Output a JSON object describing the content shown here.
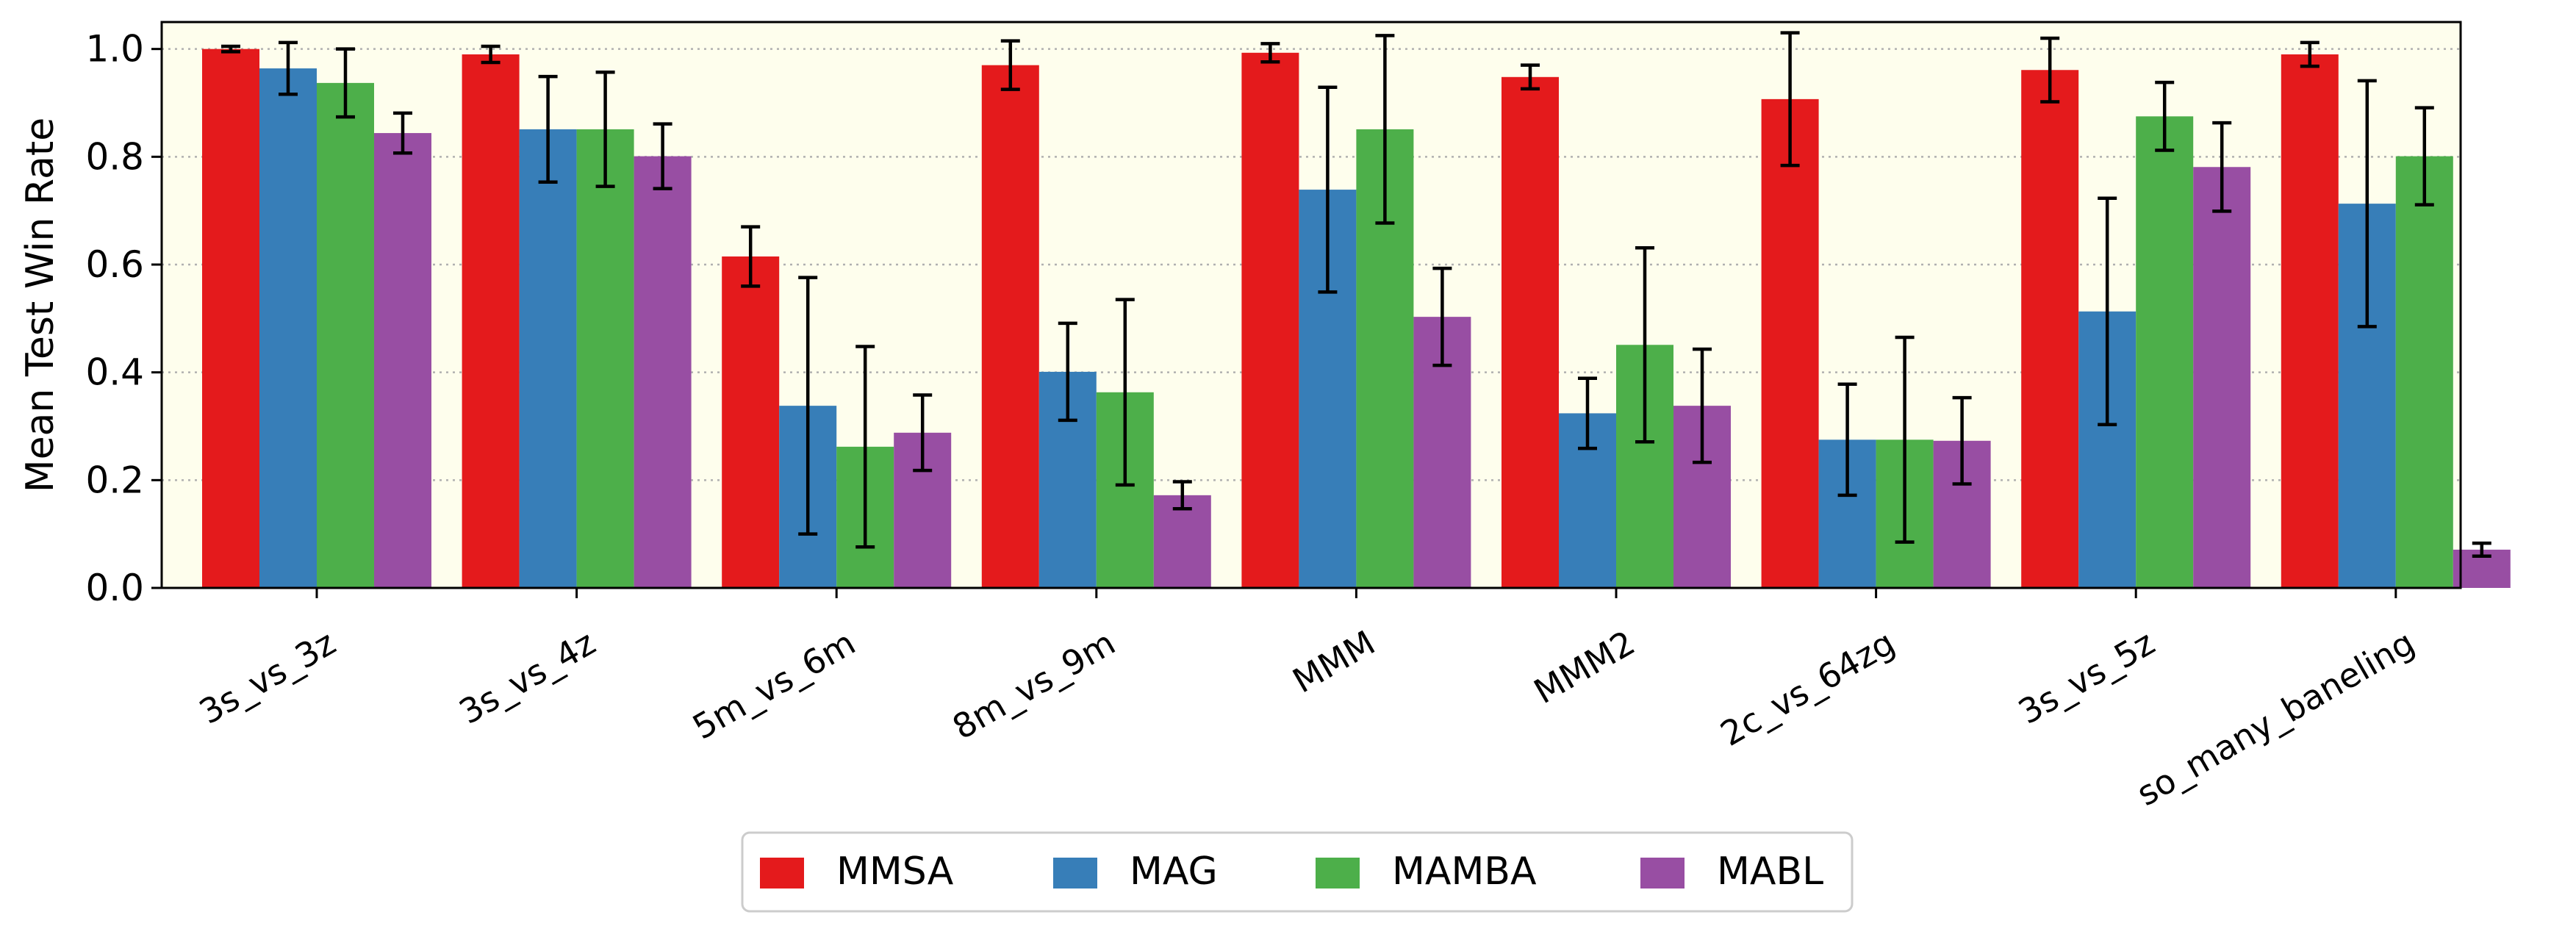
{
  "chart_data": {
    "type": "bar",
    "title": "",
    "xlabel": "",
    "ylabel": "Mean Test Win Rate",
    "ylim": [
      0,
      1.05
    ],
    "yticks": [
      "0.0",
      "0.2",
      "0.4",
      "0.6",
      "0.8",
      "1.0"
    ],
    "grid": "horizontal dotted",
    "legend_position": "bottom-center",
    "plot_background": "#fefeed",
    "categories": [
      "3s_vs_3z",
      "3s_vs_4z",
      "5m_vs_6m",
      "8m_vs_9m",
      "MMM",
      "MMM2",
      "2c_vs_64zg",
      "3s_vs_5z",
      "so_many_baneling"
    ],
    "series": [
      {
        "name": "MMSA",
        "color": "#e41a1c",
        "values": [
          1.0,
          0.99,
          0.615,
          0.97,
          0.993,
          0.948,
          0.907,
          0.961,
          0.99
        ],
        "errors": [
          0.005,
          0.015,
          0.055,
          0.045,
          0.017,
          0.022,
          0.123,
          0.059,
          0.022
        ]
      },
      {
        "name": "MAG",
        "color": "#377eb8",
        "values": [
          0.964,
          0.851,
          0.338,
          0.401,
          0.739,
          0.324,
          0.275,
          0.513,
          0.713
        ],
        "errors": [
          0.048,
          0.098,
          0.238,
          0.09,
          0.19,
          0.065,
          0.103,
          0.21,
          0.228
        ]
      },
      {
        "name": "MAMBA",
        "color": "#4daf4a",
        "values": [
          0.937,
          0.851,
          0.262,
          0.363,
          0.851,
          0.451,
          0.275,
          0.875,
          0.801
        ],
        "errors": [
          0.063,
          0.106,
          0.186,
          0.172,
          0.174,
          0.18,
          0.19,
          0.063,
          0.09
        ]
      },
      {
        "name": "MABL",
        "color": "#984ea3",
        "values": [
          0.844,
          0.801,
          0.288,
          0.172,
          0.503,
          0.338,
          0.273,
          0.781,
          0.071
        ],
        "errors": [
          0.037,
          0.06,
          0.07,
          0.025,
          0.09,
          0.105,
          0.08,
          0.082,
          0.012
        ]
      }
    ]
  }
}
